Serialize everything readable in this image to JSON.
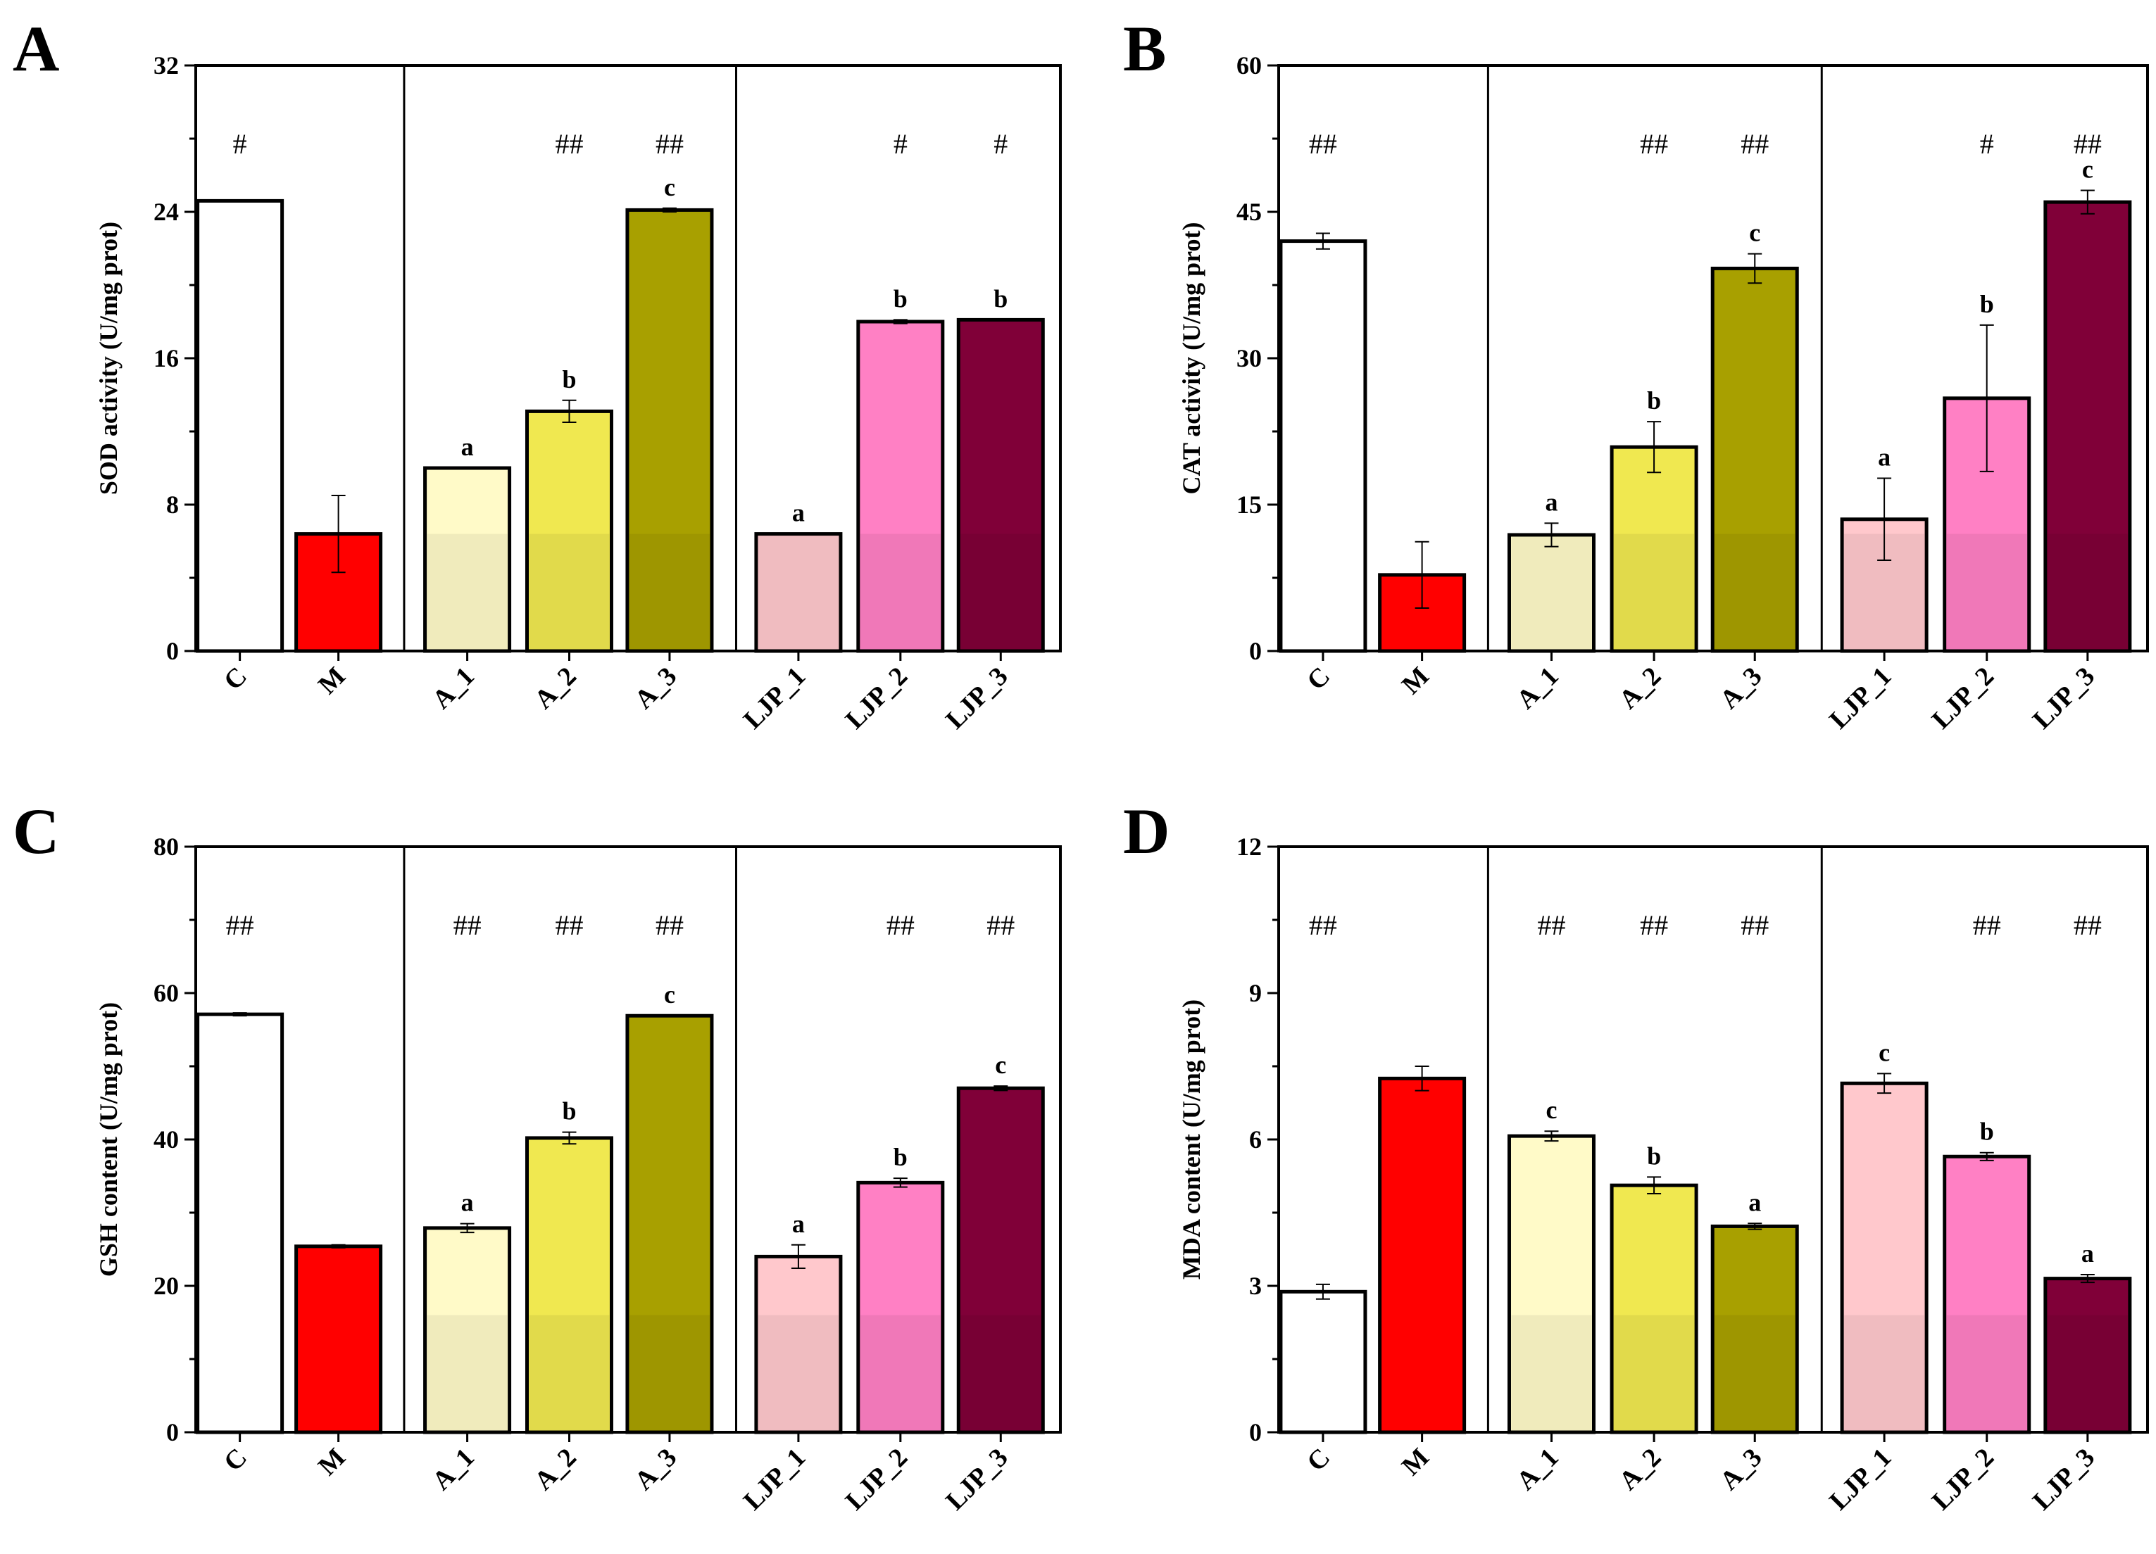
{
  "colors": {
    "C": "#ffffff",
    "M": "#ff0000",
    "A_1": "#fffac8",
    "A_2": "#f0e850",
    "A_3": "#a8a000",
    "LJP_1": "#ffc8cc",
    "LJP_2": "#ff80c4",
    "LJP_3": "#800038",
    "axis": "#000000"
  },
  "chart_data": [
    {
      "panel": "A",
      "type": "bar",
      "ylabel": "SOD activity (U/mg prot)",
      "ylim": [
        0,
        32
      ],
      "yticks": [
        0,
        8,
        16,
        24,
        32
      ],
      "categories": [
        "C",
        "M",
        "A_1",
        "A_2",
        "A_3",
        "LJP_1",
        "LJP_2",
        "LJP_3"
      ],
      "values": [
        24.6,
        6.4,
        10.0,
        13.1,
        24.1,
        6.4,
        18.0,
        18.1
      ],
      "errors": [
        0,
        2.1,
        0,
        0.6,
        0.1,
        0,
        0.1,
        0
      ],
      "letters": [
        "",
        "",
        "a",
        "b",
        "c",
        "a",
        "b",
        "b"
      ],
      "hashes": [
        "#",
        "",
        "",
        "##",
        "##",
        "",
        "#",
        "#"
      ]
    },
    {
      "panel": "B",
      "type": "bar",
      "ylabel": "CAT activity (U/mg prot)",
      "ylim": [
        0,
        60
      ],
      "yticks": [
        0,
        15,
        30,
        45,
        60
      ],
      "categories": [
        "C",
        "M",
        "A_1",
        "A_2",
        "A_3",
        "LJP_1",
        "LJP_2",
        "LJP_3"
      ],
      "values": [
        42.0,
        7.8,
        11.9,
        20.9,
        39.2,
        13.5,
        25.9,
        46.0
      ],
      "errors": [
        0.8,
        3.4,
        1.2,
        2.6,
        1.5,
        4.2,
        7.5,
        1.2
      ],
      "letters": [
        "",
        "",
        "a",
        "b",
        "c",
        "a",
        "b",
        "c"
      ],
      "hashes": [
        "##",
        "",
        "",
        "##",
        "##",
        "",
        "#",
        "##"
      ]
    },
    {
      "panel": "C",
      "type": "bar",
      "ylabel": "GSH content (U/mg prot)",
      "ylim": [
        0,
        80
      ],
      "yticks": [
        0,
        20,
        40,
        60,
        80
      ],
      "categories": [
        "C",
        "M",
        "A_1",
        "A_2",
        "A_3",
        "LJP_1",
        "LJP_2",
        "LJP_3"
      ],
      "values": [
        57.1,
        25.4,
        27.9,
        40.2,
        56.9,
        24.0,
        34.1,
        47.0
      ],
      "errors": [
        0.2,
        0.2,
        0.6,
        0.8,
        0,
        1.6,
        0.6,
        0.3
      ],
      "letters": [
        "",
        "",
        "a",
        "b",
        "c",
        "a",
        "b",
        "c"
      ],
      "hashes": [
        "##",
        "",
        "##",
        "##",
        "##",
        "",
        "##",
        "##"
      ]
    },
    {
      "panel": "D",
      "type": "bar",
      "ylabel": "MDA content (U/mg prot)",
      "ylim": [
        0,
        12
      ],
      "yticks": [
        0,
        3,
        6,
        9,
        12
      ],
      "categories": [
        "C",
        "M",
        "A_1",
        "A_2",
        "A_3",
        "LJP_1",
        "LJP_2",
        "LJP_3"
      ],
      "values": [
        2.88,
        7.25,
        6.07,
        5.06,
        4.22,
        7.15,
        5.65,
        3.15
      ],
      "errors": [
        0.15,
        0.25,
        0.1,
        0.17,
        0.06,
        0.2,
        0.08,
        0.08
      ],
      "letters": [
        "",
        "",
        "c",
        "b",
        "a",
        "c",
        "b",
        "a"
      ],
      "hashes": [
        "##",
        "",
        "##",
        "##",
        "##",
        "",
        "##",
        "##"
      ]
    }
  ]
}
